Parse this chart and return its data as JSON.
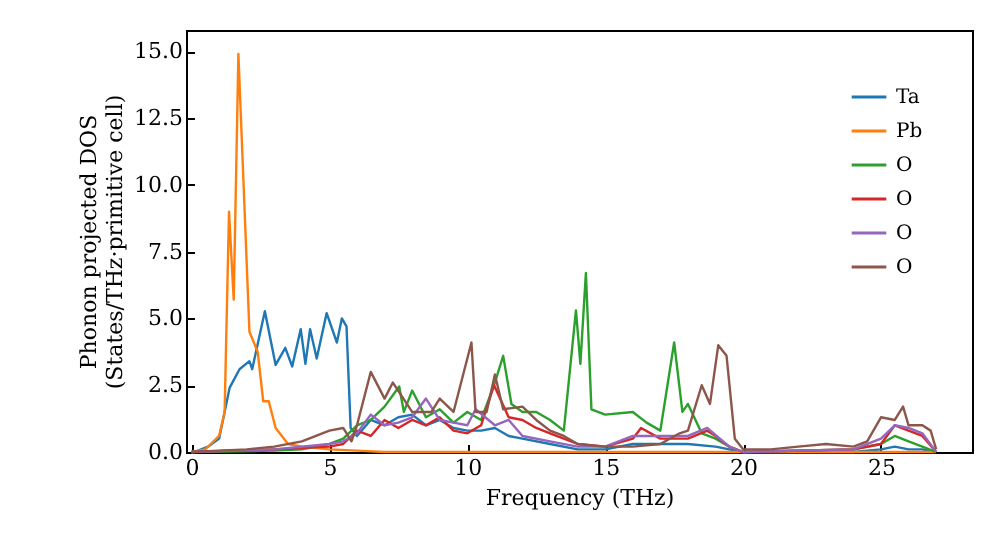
{
  "chart_data": {
    "type": "line",
    "xlabel": "Frequency (THz)",
    "ylabel": "Phonon projected DOS\n(States/THz·primitive cell)",
    "xlim": [
      -0.2,
      28.3
    ],
    "ylim": [
      0,
      15.8
    ],
    "xticks": [
      0,
      5,
      10,
      15,
      20,
      25
    ],
    "yticks": [
      {
        "value": 0,
        "label": "0.0"
      },
      {
        "value": 2.5,
        "label": "2.5"
      },
      {
        "value": 5,
        "label": "5.0"
      },
      {
        "value": 7.5,
        "label": "7.5"
      },
      {
        "value": 10,
        "label": "10.0"
      },
      {
        "value": 12.5,
        "label": "12.5"
      },
      {
        "value": 15,
        "label": "15.0"
      }
    ],
    "grid": false,
    "legend": "top right",
    "marker": "none",
    "line_style": "solid",
    "series": [
      {
        "name": "Ta",
        "color": "#1f77b4",
        "x": [
          0,
          0.1,
          0.6,
          1.0,
          1.38,
          1.74,
          2.1,
          2.2,
          2.66,
          3.05,
          3.4,
          3.65,
          3.96,
          4.13,
          4.3,
          4.54,
          4.9,
          5.27,
          5.45,
          5.62,
          5.77,
          6.0,
          6.5,
          7.0,
          7.5,
          8.0,
          8.5,
          9.0,
          9.5,
          10.0,
          10.5,
          11.0,
          11.5,
          12.0,
          13.0,
          14.0,
          15.0,
          16.0,
          17.0,
          18.0,
          19.0,
          19.5,
          20.0,
          24.0,
          25.0,
          25.5,
          26.0,
          26.5,
          27.0
        ],
        "values": [
          0,
          0,
          0.2,
          0.5,
          2.4,
          3.1,
          3.4,
          3.1,
          5.27,
          3.26,
          3.9,
          3.2,
          4.6,
          3.3,
          4.6,
          3.5,
          5.2,
          4.1,
          5.0,
          4.7,
          0.9,
          0.6,
          1.2,
          1.0,
          1.3,
          1.4,
          1.0,
          1.2,
          0.9,
          0.8,
          0.8,
          0.9,
          0.6,
          0.5,
          0.3,
          0.1,
          0.1,
          0.3,
          0.3,
          0.3,
          0.2,
          0.1,
          0,
          0,
          0.1,
          0.2,
          0.1,
          0.1,
          0
        ]
      },
      {
        "name": "Pb",
        "color": "#ff7f0e",
        "x": [
          0,
          0.5,
          1.0,
          1.2,
          1.36,
          1.53,
          1.7,
          2.1,
          2.4,
          2.6,
          2.8,
          3.05,
          3.5,
          4.0,
          5.0,
          6.0,
          7.0,
          27.0
        ],
        "values": [
          0,
          0.1,
          0.6,
          1.5,
          9.0,
          5.7,
          14.9,
          4.5,
          3.75,
          1.9,
          1.9,
          0.9,
          0.3,
          0.2,
          0.1,
          0.05,
          0,
          0
        ]
      },
      {
        "name": "O",
        "color": "#2ca02c",
        "x": [
          0,
          3.0,
          4.0,
          5.0,
          5.5,
          6.0,
          6.5,
          7.0,
          7.53,
          7.7,
          8.0,
          8.5,
          9.0,
          9.5,
          10.0,
          10.5,
          11.0,
          11.3,
          11.6,
          12.0,
          12.5,
          13.0,
          13.5,
          13.94,
          14.1,
          14.3,
          14.5,
          15.0,
          16.0,
          16.5,
          17.0,
          17.5,
          17.8,
          18.0,
          18.5,
          19.0,
          19.5,
          20.0,
          24.0,
          25.0,
          25.5,
          26.0,
          26.5,
          27.0
        ],
        "values": [
          0,
          0.05,
          0.1,
          0.3,
          0.5,
          1.0,
          1.2,
          1.7,
          2.45,
          1.5,
          2.3,
          1.3,
          1.6,
          1.1,
          1.5,
          1.2,
          2.6,
          3.6,
          1.8,
          1.5,
          1.5,
          1.2,
          0.8,
          5.3,
          3.3,
          6.7,
          1.6,
          1.4,
          1.5,
          1.1,
          0.8,
          4.1,
          1.5,
          1.8,
          0.7,
          0.5,
          0.2,
          0,
          0.1,
          0.3,
          0.6,
          0.4,
          0.2,
          0
        ]
      },
      {
        "name": "O",
        "color": "#d62728",
        "x": [
          0,
          3.0,
          5.0,
          5.5,
          6.0,
          6.5,
          7.0,
          7.5,
          8.0,
          8.5,
          9.0,
          9.5,
          10.0,
          10.5,
          10.97,
          11.5,
          12.0,
          12.5,
          13.0,
          14.0,
          15.0,
          16.0,
          16.3,
          17.0,
          18.0,
          18.7,
          19.0,
          19.5,
          20.0,
          24.0,
          25.0,
          25.5,
          26.0,
          26.5,
          27.0
        ],
        "values": [
          0,
          0.1,
          0.2,
          0.3,
          0.8,
          0.6,
          1.2,
          0.9,
          1.2,
          1.0,
          1.3,
          0.8,
          0.7,
          1.0,
          2.5,
          1.3,
          1.2,
          0.9,
          0.7,
          0.3,
          0.2,
          0.5,
          0.9,
          0.5,
          0.5,
          0.8,
          0.6,
          0.2,
          0,
          0.1,
          0.3,
          1.0,
          0.8,
          0.6,
          0
        ]
      },
      {
        "name": "O",
        "color": "#9467bd",
        "x": [
          0,
          3.0,
          5.0,
          5.5,
          6.0,
          6.5,
          7.0,
          7.5,
          8.0,
          8.5,
          9.0,
          9.5,
          10.0,
          10.3,
          11.0,
          11.5,
          12.0,
          13.0,
          14.0,
          15.0,
          16.0,
          17.0,
          18.0,
          18.7,
          19.5,
          20.0,
          24.0,
          25.0,
          25.5,
          26.0,
          26.5,
          27.0
        ],
        "values": [
          0,
          0.1,
          0.3,
          0.4,
          0.7,
          1.4,
          1.0,
          1.1,
          1.3,
          2.0,
          1.2,
          1.1,
          1.0,
          1.6,
          1.0,
          1.2,
          0.6,
          0.4,
          0.2,
          0.2,
          0.6,
          0.6,
          0.6,
          0.9,
          0.2,
          0,
          0.1,
          0.5,
          1.0,
          0.9,
          0.7,
          0
        ]
      },
      {
        "name": "O",
        "color": "#8c564b",
        "x": [
          0,
          1.0,
          2.0,
          3.0,
          4.0,
          5.0,
          5.5,
          5.8,
          6.0,
          6.5,
          7.0,
          7.3,
          8.0,
          8.7,
          9.0,
          9.5,
          10.15,
          10.3,
          10.7,
          11.0,
          11.3,
          12.0,
          12.5,
          13.0,
          13.5,
          14.0,
          15.0,
          16.0,
          17.0,
          17.7,
          18.0,
          18.5,
          18.8,
          19.1,
          19.4,
          19.7,
          20.0,
          21.0,
          22.0,
          23.0,
          24.0,
          24.5,
          25.0,
          25.5,
          25.8,
          26.0,
          26.5,
          26.8,
          27.0
        ],
        "values": [
          0,
          0.05,
          0.1,
          0.2,
          0.4,
          0.8,
          0.9,
          0.4,
          1.0,
          3.0,
          2.0,
          2.6,
          1.5,
          1.5,
          2.0,
          1.5,
          4.1,
          1.5,
          1.5,
          2.9,
          1.6,
          1.7,
          1.2,
          0.8,
          0.6,
          0.3,
          0.2,
          0.2,
          0.3,
          0.7,
          0.8,
          2.5,
          1.8,
          4.0,
          3.6,
          0.5,
          0.1,
          0.1,
          0.2,
          0.3,
          0.2,
          0.4,
          1.3,
          1.2,
          1.7,
          1.0,
          1.0,
          0.8,
          0.1
        ]
      }
    ]
  }
}
